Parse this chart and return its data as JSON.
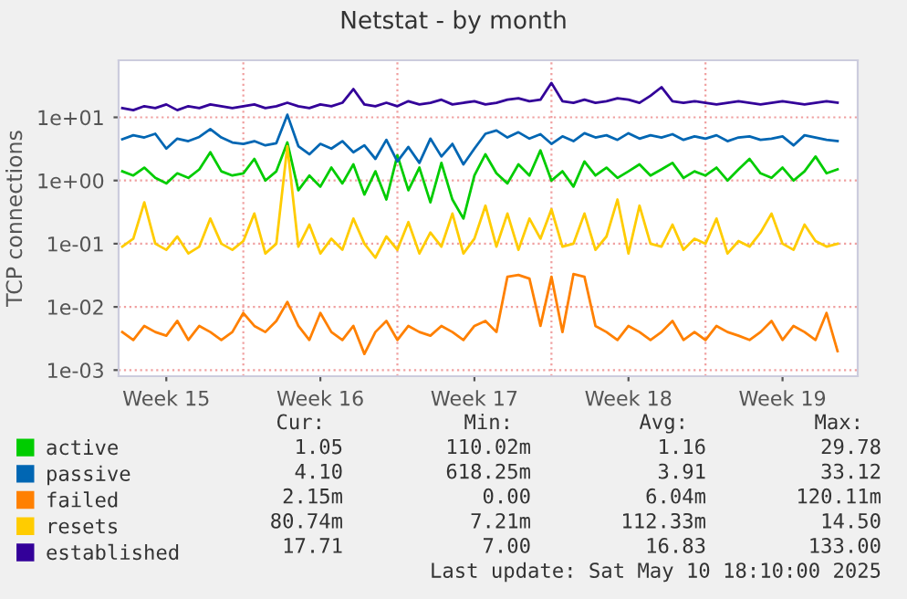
{
  "chart_data": {
    "type": "line",
    "title": "Netstat - by month",
    "ylabel": "TCP connections",
    "log": true,
    "grid": "y",
    "legend": "bottom left",
    "marker": "none",
    "line_style": "solid",
    "ylim": [
      0.0008,
      80
    ],
    "yticks": [
      {
        "value": 0.001,
        "label": "1e-03"
      },
      {
        "value": 0.01,
        "label": "1e-02"
      },
      {
        "value": 0.1,
        "label": "1e-01"
      },
      {
        "value": 1,
        "label": "1e+00"
      },
      {
        "value": 10,
        "label": "1e+01"
      }
    ],
    "xlim": [
      "2025-04-08T08:00",
      "2025-05-11T22:00"
    ],
    "xticks": [
      {
        "value": "2025-04-10T12:00",
        "label": "Week 15"
      },
      {
        "value": "2025-04-17T12:00",
        "label": "Week 16"
      },
      {
        "value": "2025-04-24T12:00",
        "label": "Week 17"
      },
      {
        "value": "2025-05-01T12:00",
        "label": "Week 18"
      },
      {
        "value": "2025-05-08T12:00",
        "label": "Week 19"
      }
    ],
    "ref_lines": [
      {
        "axis": "x",
        "value": "2025-04-14",
        "color": "#f0a0a0",
        "line_style": "dotted"
      },
      {
        "axis": "x",
        "value": "2025-04-21",
        "color": "#f0a0a0",
        "line_style": "dotted"
      },
      {
        "axis": "x",
        "value": "2025-04-28",
        "color": "#f0a0a0",
        "line_style": "dotted"
      },
      {
        "axis": "x",
        "value": "2025-05-05",
        "color": "#f0a0a0",
        "line_style": "dotted"
      }
    ],
    "x": [
      "2025-04-08T12:00",
      "2025-04-09T00:00",
      "2025-04-09T12:00",
      "2025-04-10T00:00",
      "2025-04-10T12:00",
      "2025-04-11T00:00",
      "2025-04-11T12:00",
      "2025-04-12T00:00",
      "2025-04-12T12:00",
      "2025-04-13T00:00",
      "2025-04-13T12:00",
      "2025-04-14T00:00",
      "2025-04-14T12:00",
      "2025-04-15T00:00",
      "2025-04-15T12:00",
      "2025-04-16T00:00",
      "2025-04-16T12:00",
      "2025-04-17T00:00",
      "2025-04-17T12:00",
      "2025-04-18T00:00",
      "2025-04-18T12:00",
      "2025-04-19T00:00",
      "2025-04-19T12:00",
      "2025-04-20T00:00",
      "2025-04-20T12:00",
      "2025-04-21T00:00",
      "2025-04-21T12:00",
      "2025-04-22T00:00",
      "2025-04-22T12:00",
      "2025-04-23T00:00",
      "2025-04-23T12:00",
      "2025-04-24T00:00",
      "2025-04-24T12:00",
      "2025-04-25T00:00",
      "2025-04-25T12:00",
      "2025-04-26T00:00",
      "2025-04-26T12:00",
      "2025-04-27T00:00",
      "2025-04-27T12:00",
      "2025-04-28T00:00",
      "2025-04-28T12:00",
      "2025-04-29T00:00",
      "2025-04-29T12:00",
      "2025-04-30T00:00",
      "2025-04-30T12:00",
      "2025-05-01T00:00",
      "2025-05-01T12:00",
      "2025-05-02T00:00",
      "2025-05-02T12:00",
      "2025-05-03T00:00",
      "2025-05-03T12:00",
      "2025-05-04T00:00",
      "2025-05-04T12:00",
      "2025-05-05T00:00",
      "2025-05-05T12:00",
      "2025-05-06T00:00",
      "2025-05-06T12:00",
      "2025-05-07T00:00",
      "2025-05-07T12:00",
      "2025-05-08T00:00",
      "2025-05-08T12:00",
      "2025-05-09T00:00",
      "2025-05-09T12:00",
      "2025-05-10T00:00",
      "2025-05-10T12:00",
      "2025-05-11T00:00"
    ],
    "series": [
      {
        "name": "active",
        "color": "#00cc00",
        "values": [
          1.4,
          1.2,
          1.6,
          1.1,
          0.9,
          1.3,
          1.1,
          1.5,
          2.8,
          1.4,
          1.2,
          1.3,
          2.2,
          1.0,
          1.4,
          4.0,
          0.7,
          1.2,
          0.8,
          1.6,
          0.9,
          1.8,
          0.6,
          1.4,
          0.5,
          2.5,
          0.7,
          1.6,
          0.45,
          1.9,
          0.5,
          0.25,
          1.2,
          2.6,
          1.3,
          0.9,
          1.8,
          1.2,
          3.0,
          1.0,
          1.4,
          0.8,
          2.0,
          1.2,
          1.6,
          1.1,
          1.4,
          1.8,
          1.2,
          1.5,
          1.9,
          1.1,
          1.4,
          1.2,
          1.6,
          1.0,
          1.5,
          2.2,
          1.3,
          1.1,
          1.6,
          1.0,
          1.4,
          2.4,
          1.3,
          1.5
        ]
      },
      {
        "name": "passive",
        "color": "#0066b3",
        "values": [
          4.5,
          5.2,
          4.8,
          5.5,
          3.2,
          4.6,
          4.2,
          4.9,
          6.5,
          4.8,
          4.0,
          3.8,
          4.2,
          3.6,
          3.9,
          11,
          3.5,
          2.6,
          3.8,
          3.2,
          4.2,
          2.8,
          3.6,
          2.2,
          4.4,
          2.0,
          3.4,
          1.9,
          4.6,
          2.4,
          3.8,
          1.8,
          3.2,
          5.5,
          6.2,
          4.8,
          5.8,
          4.6,
          5.4,
          3.8,
          5.0,
          4.2,
          5.6,
          4.8,
          5.2,
          4.4,
          5.6,
          4.6,
          5.2,
          4.8,
          5.4,
          4.4,
          5.0,
          4.6,
          5.2,
          4.2,
          4.8,
          5.0,
          4.4,
          4.6,
          5.0,
          3.6,
          5.2,
          4.8,
          4.4,
          4.2
        ]
      },
      {
        "name": "failed",
        "color": "#ff8000",
        "values": [
          0.004,
          0.003,
          0.005,
          0.004,
          0.0035,
          0.006,
          0.003,
          0.005,
          0.004,
          0.003,
          0.004,
          0.008,
          0.005,
          0.004,
          0.006,
          0.012,
          0.005,
          0.003,
          0.008,
          0.004,
          0.003,
          0.005,
          0.0018,
          0.004,
          0.006,
          0.003,
          0.005,
          0.004,
          0.0035,
          0.005,
          0.004,
          0.003,
          0.005,
          0.006,
          0.004,
          0.03,
          0.032,
          0.028,
          0.005,
          0.03,
          0.004,
          0.033,
          0.03,
          0.005,
          0.004,
          0.003,
          0.005,
          0.004,
          0.003,
          0.004,
          0.006,
          0.003,
          0.004,
          0.003,
          0.005,
          0.004,
          0.0035,
          0.003,
          0.004,
          0.006,
          0.003,
          0.005,
          0.004,
          0.003,
          0.008,
          0.002
        ]
      },
      {
        "name": "resets",
        "color": "#ffcc00",
        "values": [
          0.09,
          0.12,
          0.45,
          0.1,
          0.08,
          0.13,
          0.07,
          0.09,
          0.25,
          0.1,
          0.08,
          0.11,
          0.3,
          0.07,
          0.1,
          3.5,
          0.09,
          0.2,
          0.07,
          0.12,
          0.08,
          0.25,
          0.1,
          0.06,
          0.13,
          0.08,
          0.22,
          0.07,
          0.15,
          0.09,
          0.3,
          0.07,
          0.12,
          0.4,
          0.09,
          0.3,
          0.08,
          0.25,
          0.12,
          0.35,
          0.09,
          0.1,
          0.3,
          0.08,
          0.13,
          0.5,
          0.07,
          0.4,
          0.1,
          0.09,
          0.2,
          0.08,
          0.12,
          0.1,
          0.25,
          0.07,
          0.11,
          0.09,
          0.15,
          0.3,
          0.1,
          0.08,
          0.2,
          0.11,
          0.09,
          0.1
        ]
      },
      {
        "name": "established",
        "color": "#330099",
        "values": [
          14,
          13,
          15,
          14,
          16,
          13,
          15,
          14,
          16,
          15,
          14,
          15,
          16,
          14,
          15,
          17,
          15,
          14,
          16,
          15,
          17,
          28,
          16,
          15,
          17,
          15,
          18,
          16,
          17,
          19,
          16,
          17,
          18,
          16,
          17,
          19,
          20,
          18,
          19,
          35,
          18,
          17,
          19,
          17,
          18,
          20,
          19,
          17,
          22,
          30,
          18,
          17,
          18,
          17,
          16,
          17,
          18,
          17,
          16,
          17,
          18,
          17,
          16,
          17,
          18,
          17
        ]
      }
    ],
    "annotations": [
      "Cur:",
      "Min:",
      "Avg:",
      "Max:",
      "1.05",
      "110.02m",
      "1.16",
      "29.78",
      "4.10",
      "618.25m",
      "3.91",
      "33.12",
      "2.15m",
      "0.00",
      "6.04m",
      "120.11m",
      "80.74m",
      "7.21m",
      "112.33m",
      "14.50",
      "17.71",
      "7.00",
      "16.83",
      "133.00",
      "Last update: Sat May 10 18:10:00 2025"
    ]
  }
}
